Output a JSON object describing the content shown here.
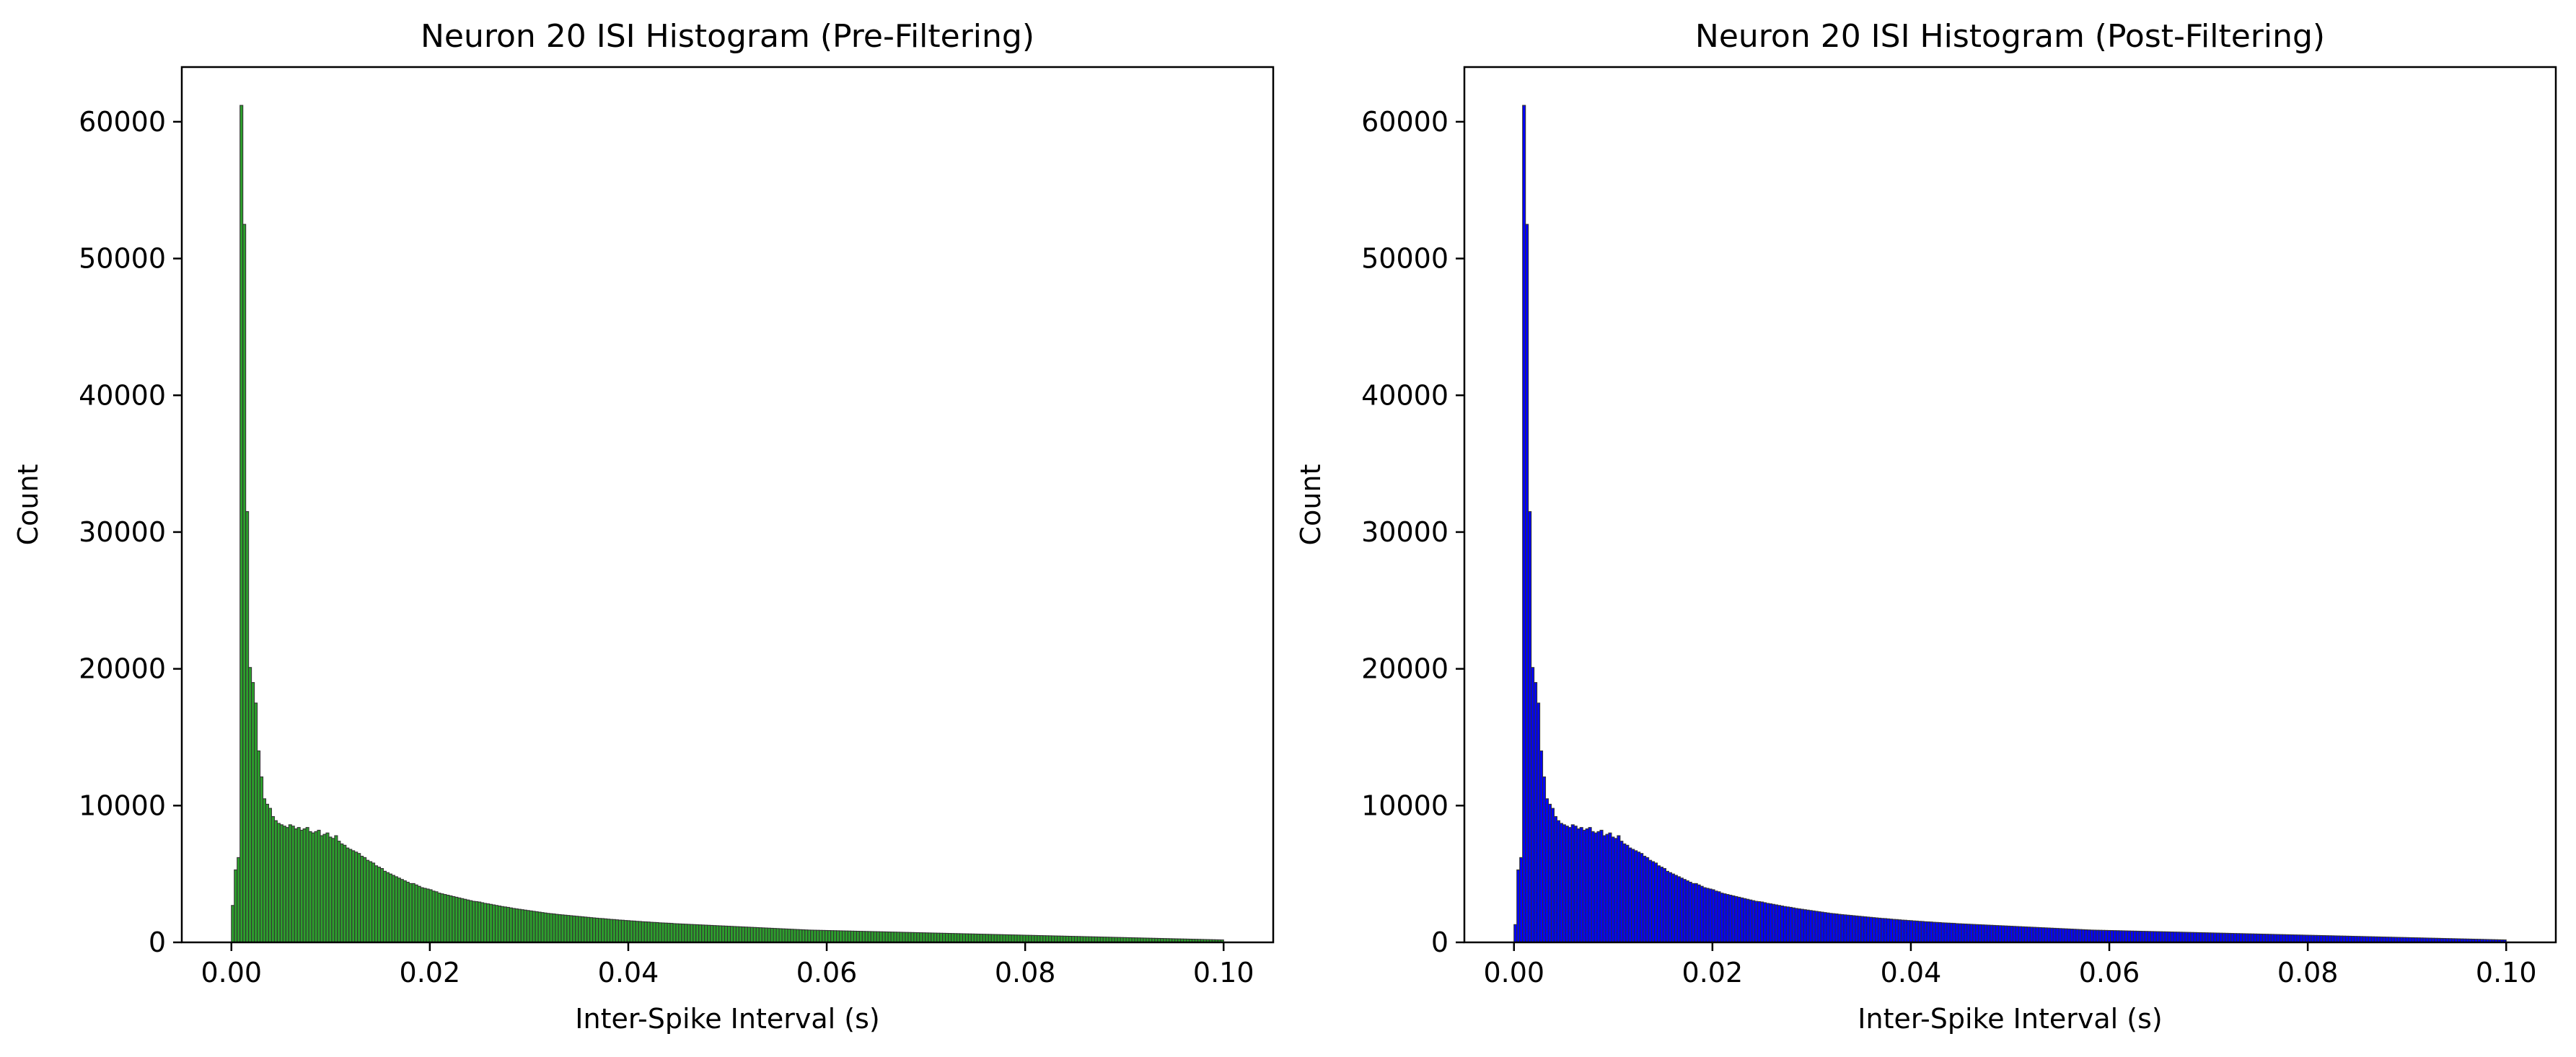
{
  "chart_data": [
    {
      "type": "bar",
      "title": "Neuron 20 ISI Histogram (Pre-Filtering)",
      "xlabel": "Inter-Spike Interval (s)",
      "ylabel": "Count",
      "xlim": [
        -0.005,
        0.105
      ],
      "ylim": [
        0,
        64000
      ],
      "xticks": [
        0.0,
        0.02,
        0.04,
        0.06,
        0.08,
        0.1
      ],
      "xtick_labels": [
        "0.00",
        "0.02",
        "0.04",
        "0.06",
        "0.08",
        "0.10"
      ],
      "yticks": [
        0,
        10000,
        20000,
        30000,
        40000,
        50000,
        60000
      ],
      "ytick_labels": [
        "0",
        "10000",
        "20000",
        "30000",
        "40000",
        "50000",
        "60000"
      ],
      "grid": false,
      "bar_color": "#2ca02c",
      "edge_color": "#333333",
      "bin_range": [
        0.0,
        0.1
      ],
      "counts": [
        2700,
        5300,
        6200,
        61200,
        52500,
        31500,
        20100,
        19000,
        17500,
        14000,
        12100,
        10500,
        10100,
        9800,
        9200,
        8900,
        8700,
        8600,
        8500,
        8400,
        8600,
        8500,
        8300,
        8400,
        8200,
        8300,
        8400,
        8100,
        8000,
        8100,
        8200,
        7800,
        7900,
        8000,
        7700,
        7600,
        7800,
        7400,
        7200,
        7100,
        6900,
        6800,
        6700,
        6600,
        6500,
        6300,
        6200,
        6000,
        5900,
        5800,
        5600,
        5500,
        5400,
        5200,
        5100,
        5000,
        4900,
        4800,
        4700,
        4600,
        4500,
        4400,
        4300,
        4300,
        4200,
        4100,
        4000,
        3950,
        3900,
        3850,
        3750,
        3700,
        3600,
        3550,
        3500,
        3450,
        3400,
        3350,
        3300,
        3250,
        3200,
        3150,
        3100,
        3050,
        3000,
        2980,
        2950,
        2900,
        2850,
        2820,
        2780,
        2740,
        2700,
        2660,
        2620,
        2590,
        2560,
        2520,
        2480,
        2450,
        2420,
        2390,
        2360,
        2330,
        2300,
        2270,
        2240,
        2210,
        2180,
        2150,
        2120,
        2100,
        2080,
        2050,
        2030,
        2010,
        1990,
        1970,
        1950,
        1930,
        1910,
        1890,
        1870,
        1850,
        1830,
        1810,
        1790,
        1770,
        1750,
        1740,
        1720,
        1700,
        1680,
        1670,
        1650,
        1630,
        1620,
        1600,
        1590,
        1570,
        1560,
        1540,
        1530,
        1510,
        1500,
        1490,
        1470,
        1460,
        1450,
        1430,
        1420,
        1410,
        1400,
        1390,
        1370,
        1360,
        1350,
        1340,
        1330,
        1320,
        1310,
        1300,
        1290,
        1280,
        1270,
        1260,
        1250,
        1240,
        1230,
        1220,
        1210,
        1200,
        1190,
        1180,
        1170,
        1160,
        1150,
        1140,
        1130,
        1120,
        1110,
        1100,
        1090,
        1080,
        1070,
        1060,
        1050,
        1040,
        1030,
        1020,
        1010,
        1000,
        990,
        980,
        970,
        960,
        950,
        940,
        930,
        920,
        910,
        900,
        895,
        890,
        885,
        880,
        875,
        870,
        865,
        860,
        855,
        850,
        845,
        840,
        835,
        830,
        825,
        820,
        815,
        810,
        805,
        800,
        795,
        790,
        785,
        780,
        775,
        770,
        765,
        760,
        755,
        750,
        745,
        740,
        735,
        730,
        725,
        720,
        715,
        710,
        705,
        700,
        695,
        690,
        685,
        680,
        675,
        670,
        665,
        660,
        655,
        650,
        645,
        640,
        635,
        630,
        625,
        620,
        615,
        610,
        605,
        600,
        595,
        590,
        585,
        580,
        575,
        570,
        565,
        560,
        555,
        550,
        545,
        540,
        535,
        530,
        525,
        520,
        515,
        510,
        505,
        500,
        495,
        490,
        485,
        480,
        475,
        470,
        465,
        460,
        455,
        450,
        445,
        440,
        435,
        430,
        425,
        420,
        415,
        410,
        405,
        400,
        395,
        390,
        385,
        380,
        375,
        370,
        365,
        360,
        355,
        350,
        345,
        340,
        335,
        330,
        325,
        320,
        315,
        310,
        305,
        300,
        295,
        290,
        285,
        280,
        275,
        270,
        265,
        260,
        255,
        250,
        245,
        240,
        235,
        230,
        225,
        220,
        215,
        210,
        205,
        200,
        195,
        190,
        185,
        180
      ]
    },
    {
      "type": "bar",
      "title": "Neuron 20 ISI Histogram (Post-Filtering)",
      "xlabel": "Inter-Spike Interval (s)",
      "ylabel": "Count",
      "xlim": [
        -0.005,
        0.105
      ],
      "ylim": [
        0,
        64000
      ],
      "xticks": [
        0.0,
        0.02,
        0.04,
        0.06,
        0.08,
        0.1
      ],
      "xtick_labels": [
        "0.00",
        "0.02",
        "0.04",
        "0.06",
        "0.08",
        "0.10"
      ],
      "yticks": [
        0,
        10000,
        20000,
        30000,
        40000,
        50000,
        60000
      ],
      "ytick_labels": [
        "0",
        "10000",
        "20000",
        "30000",
        "40000",
        "50000",
        "60000"
      ],
      "grid": false,
      "bar_color": "#0000ff",
      "edge_color": "#333333",
      "bin_range": [
        0.0,
        0.1
      ],
      "counts": [
        1300,
        5300,
        6200,
        61200,
        52500,
        31500,
        20100,
        19000,
        17500,
        14000,
        12100,
        10500,
        10100,
        9800,
        9200,
        8900,
        8700,
        8600,
        8500,
        8400,
        8600,
        8500,
        8300,
        8400,
        8200,
        8300,
        8400,
        8100,
        8000,
        8100,
        8200,
        7800,
        7900,
        8000,
        7700,
        7600,
        7800,
        7400,
        7200,
        7100,
        6900,
        6800,
        6700,
        6600,
        6500,
        6300,
        6200,
        6000,
        5900,
        5800,
        5600,
        5500,
        5400,
        5200,
        5100,
        5000,
        4900,
        4800,
        4700,
        4600,
        4500,
        4400,
        4300,
        4300,
        4200,
        4100,
        4000,
        3950,
        3900,
        3850,
        3750,
        3700,
        3600,
        3550,
        3500,
        3450,
        3400,
        3350,
        3300,
        3250,
        3200,
        3150,
        3100,
        3050,
        3000,
        2980,
        2950,
        2900,
        2850,
        2820,
        2780,
        2740,
        2700,
        2660,
        2620,
        2590,
        2560,
        2520,
        2480,
        2450,
        2420,
        2390,
        2360,
        2330,
        2300,
        2270,
        2240,
        2210,
        2180,
        2150,
        2120,
        2100,
        2080,
        2050,
        2030,
        2010,
        1990,
        1970,
        1950,
        1930,
        1910,
        1890,
        1870,
        1850,
        1830,
        1810,
        1790,
        1770,
        1750,
        1740,
        1720,
        1700,
        1680,
        1670,
        1650,
        1630,
        1620,
        1600,
        1590,
        1570,
        1560,
        1540,
        1530,
        1510,
        1500,
        1490,
        1470,
        1460,
        1450,
        1430,
        1420,
        1410,
        1400,
        1390,
        1370,
        1360,
        1350,
        1340,
        1330,
        1320,
        1310,
        1300,
        1290,
        1280,
        1270,
        1260,
        1250,
        1240,
        1230,
        1220,
        1210,
        1200,
        1190,
        1180,
        1170,
        1160,
        1150,
        1140,
        1130,
        1120,
        1110,
        1100,
        1090,
        1080,
        1070,
        1060,
        1050,
        1040,
        1030,
        1020,
        1010,
        1000,
        990,
        980,
        970,
        960,
        950,
        940,
        930,
        920,
        910,
        900,
        895,
        890,
        885,
        880,
        875,
        870,
        865,
        860,
        855,
        850,
        845,
        840,
        835,
        830,
        825,
        820,
        815,
        810,
        805,
        800,
        795,
        790,
        785,
        780,
        775,
        770,
        765,
        760,
        755,
        750,
        745,
        740,
        735,
        730,
        725,
        720,
        715,
        710,
        705,
        700,
        695,
        690,
        685,
        680,
        675,
        670,
        665,
        660,
        655,
        650,
        645,
        640,
        635,
        630,
        625,
        620,
        615,
        610,
        605,
        600,
        595,
        590,
        585,
        580,
        575,
        570,
        565,
        560,
        555,
        550,
        545,
        540,
        535,
        530,
        525,
        520,
        515,
        510,
        505,
        500,
        495,
        490,
        485,
        480,
        475,
        470,
        465,
        460,
        455,
        450,
        445,
        440,
        435,
        430,
        425,
        420,
        415,
        410,
        405,
        400,
        395,
        390,
        385,
        380,
        375,
        370,
        365,
        360,
        355,
        350,
        345,
        340,
        335,
        330,
        325,
        320,
        315,
        310,
        305,
        300,
        295,
        290,
        285,
        280,
        275,
        270,
        265,
        260,
        255,
        250,
        245,
        240,
        235,
        230,
        225,
        220,
        215,
        210,
        205,
        200,
        195,
        190,
        185,
        180
      ]
    }
  ]
}
